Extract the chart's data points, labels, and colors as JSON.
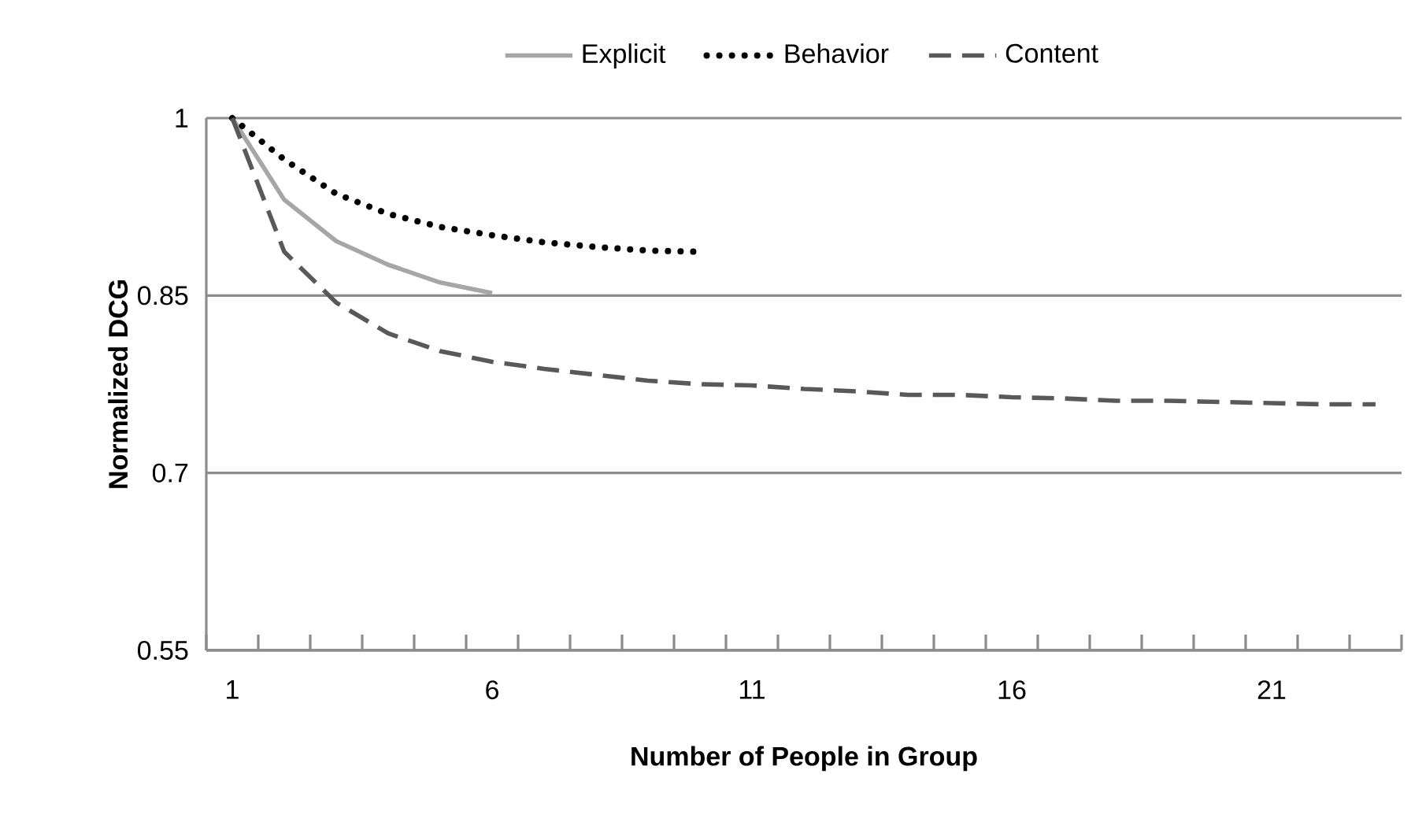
{
  "chart_data": {
    "type": "line",
    "xlabel": "Number of People in Group",
    "ylabel": "Normalized DCG",
    "x": [
      1,
      2,
      3,
      4,
      5,
      6,
      7,
      8,
      9,
      10,
      11,
      12,
      13,
      14,
      15,
      16,
      17,
      18,
      19,
      20,
      21,
      22,
      23
    ],
    "xlim": [
      0.5,
      23.5
    ],
    "xticks": [
      {
        "value": 0.5,
        "label": null
      },
      {
        "value": 1.5,
        "label": null
      },
      {
        "value": 2.5,
        "label": null
      },
      {
        "value": 3.5,
        "label": null
      },
      {
        "value": 4.5,
        "label": null
      },
      {
        "value": 5.5,
        "label": null
      },
      {
        "value": 6.5,
        "label": null
      },
      {
        "value": 7.5,
        "label": null
      },
      {
        "value": 8.5,
        "label": null
      },
      {
        "value": 9.5,
        "label": null
      },
      {
        "value": 10.5,
        "label": null
      },
      {
        "value": 11.5,
        "label": null
      },
      {
        "value": 12.5,
        "label": null
      },
      {
        "value": 13.5,
        "label": null
      },
      {
        "value": 14.5,
        "label": null
      },
      {
        "value": 15.5,
        "label": null
      },
      {
        "value": 16.5,
        "label": null
      },
      {
        "value": 17.5,
        "label": null
      },
      {
        "value": 18.5,
        "label": null
      },
      {
        "value": 19.5,
        "label": null
      },
      {
        "value": 20.5,
        "label": null
      },
      {
        "value": 21.5,
        "label": null
      },
      {
        "value": 22.5,
        "label": null
      },
      {
        "value": 23.5,
        "label": null
      },
      1,
      6,
      11,
      16,
      21
    ],
    "ylim": [
      0.55,
      1
    ],
    "yticks": [
      0.55,
      0.7,
      0.85,
      1
    ],
    "grid": "y",
    "legend": "top",
    "marker": "none",
    "series": [
      {
        "name": "Explicit",
        "color": "#a6a6a6",
        "line_style": "solid",
        "values": [
          1.0,
          0.931,
          0.896,
          0.876,
          0.861,
          0.852,
          null,
          null,
          null,
          null,
          null,
          null,
          null,
          null,
          null,
          null,
          null,
          null,
          null,
          null,
          null,
          null,
          null
        ]
      },
      {
        "name": "Behavior",
        "color": "#000000",
        "line_style": "dotted",
        "values": [
          1.0,
          0.965,
          0.936,
          0.919,
          0.908,
          0.901,
          0.895,
          0.891,
          0.888,
          0.887,
          null,
          null,
          null,
          null,
          null,
          null,
          null,
          null,
          null,
          null,
          null,
          null,
          null
        ]
      },
      {
        "name": "Content",
        "color": "#595959",
        "line_style": "dashed",
        "values": [
          1.0,
          0.887,
          0.844,
          0.818,
          0.803,
          0.794,
          0.788,
          0.783,
          0.778,
          0.775,
          0.774,
          0.771,
          0.769,
          0.766,
          0.766,
          0.764,
          0.763,
          0.761,
          0.761,
          0.76,
          0.759,
          0.758,
          0.758
        ]
      }
    ]
  }
}
